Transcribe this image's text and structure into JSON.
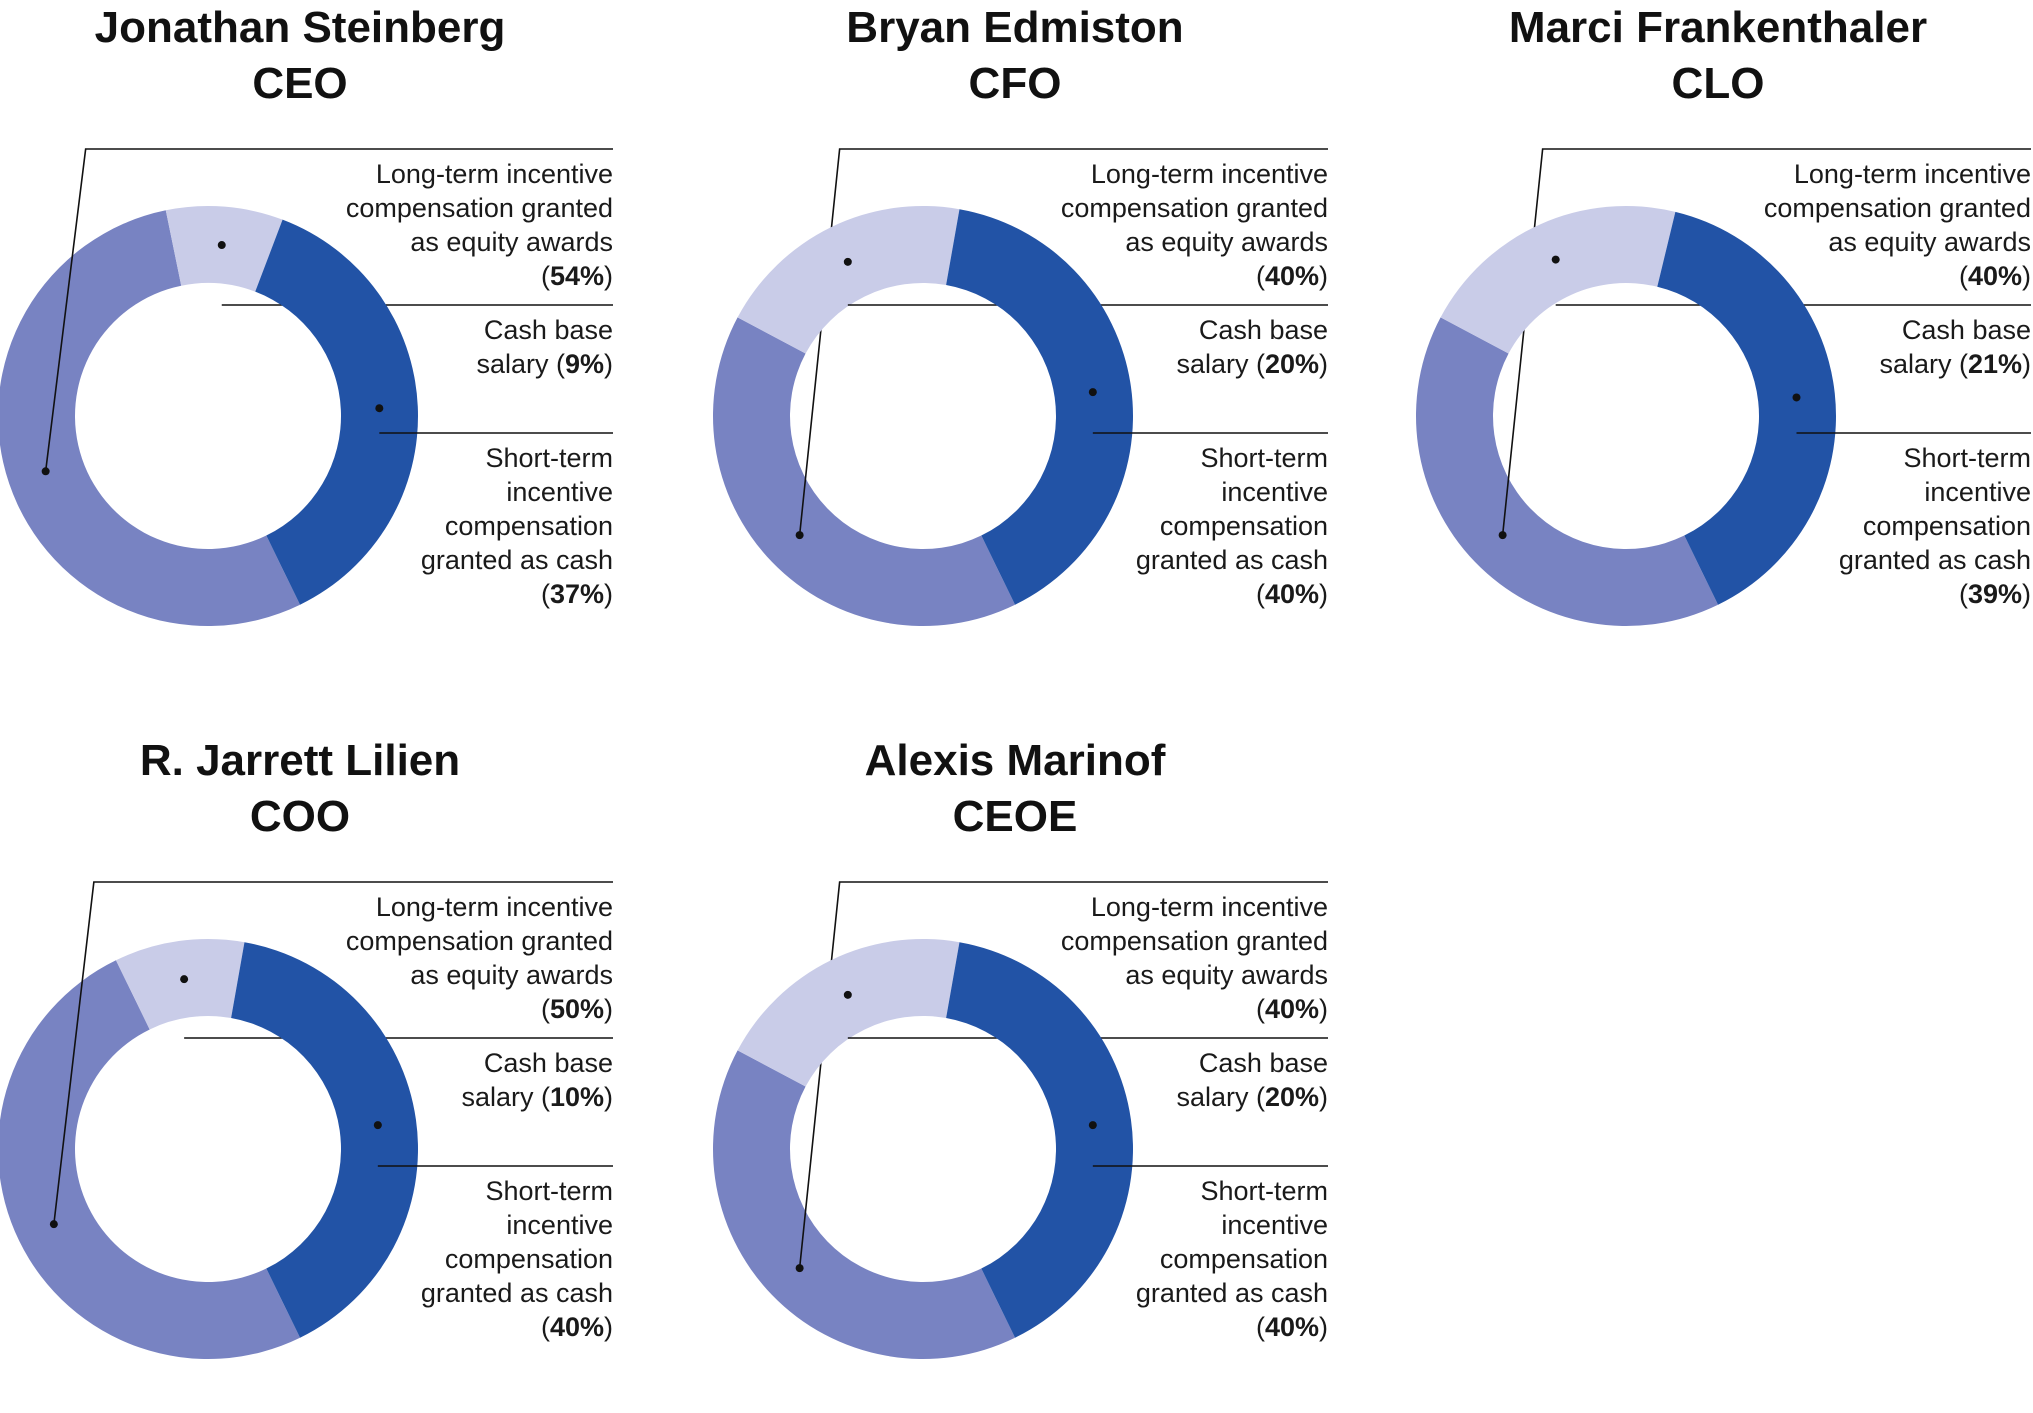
{
  "chart_data": [
    {
      "type": "pie",
      "variant": "donut",
      "name": "Jonathan Steinberg",
      "role": "CEO",
      "slices": [
        {
          "key": "equity",
          "value": 54,
          "label_lines": [
            "Long-term incentive",
            "compensation granted",
            "as equity awards"
          ],
          "pct": "54%"
        },
        {
          "key": "salary",
          "value": 9,
          "label_lines": [
            "Cash base",
            "salary"
          ],
          "pct": "9%"
        },
        {
          "key": "cash",
          "value": 37,
          "label_lines": [
            "Short-term",
            "incentive",
            "compensation",
            "granted as cash"
          ],
          "pct": "37%"
        }
      ]
    },
    {
      "type": "pie",
      "variant": "donut",
      "name": "Bryan Edmiston",
      "role": "CFO",
      "slices": [
        {
          "key": "equity",
          "value": 40,
          "label_lines": [
            "Long-term incentive",
            "compensation granted",
            "as equity awards"
          ],
          "pct": "40%"
        },
        {
          "key": "salary",
          "value": 20,
          "label_lines": [
            "Cash base",
            "salary"
          ],
          "pct": "20%"
        },
        {
          "key": "cash",
          "value": 40,
          "label_lines": [
            "Short-term",
            "incentive",
            "compensation",
            "granted as cash"
          ],
          "pct": "40%"
        }
      ]
    },
    {
      "type": "pie",
      "variant": "donut",
      "name": "Marci Frankenthaler",
      "role": "CLO",
      "slices": [
        {
          "key": "equity",
          "value": 40,
          "label_lines": [
            "Long-term incentive",
            "compensation granted",
            "as equity awards"
          ],
          "pct": "40%"
        },
        {
          "key": "salary",
          "value": 21,
          "label_lines": [
            "Cash base",
            "salary"
          ],
          "pct": "21%"
        },
        {
          "key": "cash",
          "value": 39,
          "label_lines": [
            "Short-term",
            "incentive",
            "compensation",
            "granted as cash"
          ],
          "pct": "39%"
        }
      ]
    },
    {
      "type": "pie",
      "variant": "donut",
      "name": "R. Jarrett Lilien",
      "role": "COO",
      "slices": [
        {
          "key": "equity",
          "value": 50,
          "label_lines": [
            "Long-term incentive",
            "compensation granted",
            "as equity awards"
          ],
          "pct": "50%"
        },
        {
          "key": "salary",
          "value": 10,
          "label_lines": [
            "Cash base",
            "salary"
          ],
          "pct": "10%"
        },
        {
          "key": "cash",
          "value": 40,
          "label_lines": [
            "Short-term",
            "incentive",
            "compensation",
            "granted as cash"
          ],
          "pct": "40%"
        }
      ]
    },
    {
      "type": "pie",
      "variant": "donut",
      "name": "Alexis Marinof",
      "role": "CEOE",
      "slices": [
        {
          "key": "equity",
          "value": 40,
          "label_lines": [
            "Long-term incentive",
            "compensation granted",
            "as equity awards"
          ],
          "pct": "40%"
        },
        {
          "key": "salary",
          "value": 20,
          "label_lines": [
            "Cash base",
            "salary"
          ],
          "pct": "20%"
        },
        {
          "key": "cash",
          "value": 40,
          "label_lines": [
            "Short-term",
            "incentive",
            "compensation",
            "granted as cash"
          ],
          "pct": "40%"
        }
      ]
    }
  ],
  "colors": {
    "equity": "#7883c2",
    "salary": "#c9cce8",
    "cash": "#2253a6",
    "leader": "#111111"
  }
}
